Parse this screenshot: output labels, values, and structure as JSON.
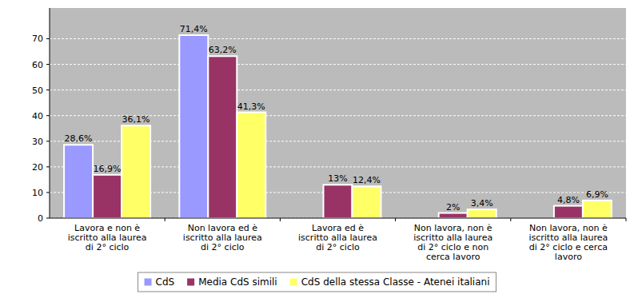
{
  "chart_data": {
    "type": "bar",
    "categories": [
      "Lavora e non è iscritto alla laurea di 2° ciclo",
      "Non lavora ed è iscritto alla laurea di 2° ciclo",
      "Lavora ed è iscritto alla laurea di 2° ciclo",
      "Non lavora, non è iscritto alla laurea di 2° ciclo e non cerca lavoro",
      "Non lavora, non è iscritto alla laurea di 2° ciclo e cerca lavoro"
    ],
    "series": [
      {
        "name": "CdS",
        "color": "#9999ff",
        "values": [
          28.6,
          71.4,
          null,
          null,
          null
        ],
        "value_labels": [
          "28,6%",
          "71,4%",
          null,
          null,
          null
        ]
      },
      {
        "name": "Media CdS simili",
        "color": "#993366",
        "values": [
          16.9,
          63.2,
          13,
          2,
          4.8
        ],
        "value_labels": [
          "16,9%",
          "63,2%",
          "13%",
          "2%",
          "4,8%"
        ]
      },
      {
        "name": "CdS della stessa Classe - Atenei italiani",
        "color": "#ffff66",
        "values": [
          36.1,
          41.3,
          12.4,
          3.4,
          6.9
        ],
        "value_labels": [
          "36,1%",
          "41,3%",
          "12,4%",
          "3,4%",
          "6,9%"
        ]
      }
    ],
    "ylim": [
      0,
      82
    ],
    "yticks": [
      0,
      10,
      20,
      30,
      40,
      50,
      60,
      70
    ],
    "grid": true,
    "legend": "bottom",
    "data_labels": true
  }
}
